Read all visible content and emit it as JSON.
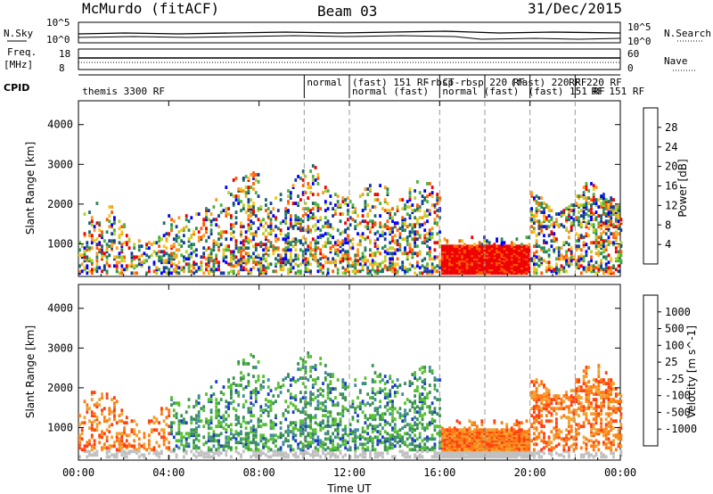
{
  "header": {
    "station": "McMurdo (fitACF)",
    "beam": "Beam 03",
    "date": "31/Dec/2015"
  },
  "strip_labels": {
    "nsky": "N.Sky",
    "nsearch": "N.Search",
    "freq_line1": "Freq.",
    "freq_line2": "[MHz]",
    "nave": "Nave",
    "cpid": "CPID"
  },
  "noise_panel": {
    "left_ticks": [
      "10^5",
      "10^0"
    ],
    "right_ticks": [
      "10^5",
      "10^0"
    ]
  },
  "freq_panel": {
    "left_ticks": [
      "18",
      "8"
    ],
    "right_ticks": [
      "60",
      "0"
    ]
  },
  "cpid_panel": {
    "labels": [
      {
        "text": "themis 3300 RF",
        "hour": 0.05,
        "row": 1
      },
      {
        "text": "normal",
        "hour": 10.0,
        "row": 0
      },
      {
        "text": "(fast) 151 RF",
        "hour": 12.0,
        "row": 0
      },
      {
        "text": "normal (fast)",
        "hour": 12.0,
        "row": 1
      },
      {
        "text": "-rbsp",
        "hour": 15.2,
        "row": 0
      },
      {
        "text": "CT-rbsp 220 RF",
        "hour": 16.0,
        "row": 0
      },
      {
        "text": "normal (fast)",
        "hour": 16.0,
        "row": 1
      },
      {
        "text": "(fast) 220 RF",
        "hour": 19.0,
        "row": 0
      },
      {
        "text": "(fast) 151 RF",
        "hour": 19.8,
        "row": 1
      },
      {
        "text": "RF 220 RF",
        "hour": 21.6,
        "row": 0
      },
      {
        "text": "RF 151 RF",
        "hour": 22.6,
        "row": 1
      }
    ],
    "boundaries": [
      10.0,
      12.0,
      16.0,
      18.0,
      20.0,
      22.0
    ]
  },
  "chart_data": [
    {
      "type": "heatmap",
      "name": "power",
      "title": "",
      "xlabel": "",
      "ylabel": "Slant Range [km]",
      "xlim": [
        0,
        24
      ],
      "ylim": [
        180,
        4600
      ],
      "yticks": [
        1000,
        2000,
        3000,
        4000
      ],
      "xticks": [
        0,
        4,
        8,
        12,
        16,
        20,
        24
      ],
      "colorbar": {
        "label": "Power [dB]",
        "ticks": [
          "28",
          "24",
          "20",
          "16",
          "12",
          "8",
          "4"
        ],
        "colors": [
          "#ee0000",
          "#ff5a00",
          "#ff9a20",
          "#f5c518",
          "#b8d028",
          "#4bb23a",
          "#2a8a55",
          "#1a6a6a",
          "#123aa0",
          "#0000ff"
        ]
      }
    },
    {
      "type": "heatmap",
      "name": "velocity",
      "title": "",
      "xlabel": "Time UT",
      "ylabel": "Slant Range [km]",
      "xlim": [
        0,
        24
      ],
      "ylim": [
        180,
        4600
      ],
      "yticks": [
        1000,
        2000,
        3000,
        4000
      ],
      "xticks": [
        0,
        4,
        8,
        12,
        16,
        20,
        24
      ],
      "xticklabels": [
        "00:00",
        "04:00",
        "08:00",
        "12:00",
        "16:00",
        "20:00",
        "00:00"
      ],
      "colorbar": {
        "label": "Velocity [m s^-1]",
        "ticks": [
          "1000",
          "500",
          "100",
          "25",
          "-25",
          "-100",
          "-500",
          "-1000"
        ],
        "colors": [
          "#1a3cc8",
          "#3f8aa0",
          "#3a8f55",
          "#55c030",
          "#c0c0c0",
          "#f0a030",
          "#ff7a10",
          "#ff4010",
          "#e00000"
        ]
      }
    }
  ]
}
